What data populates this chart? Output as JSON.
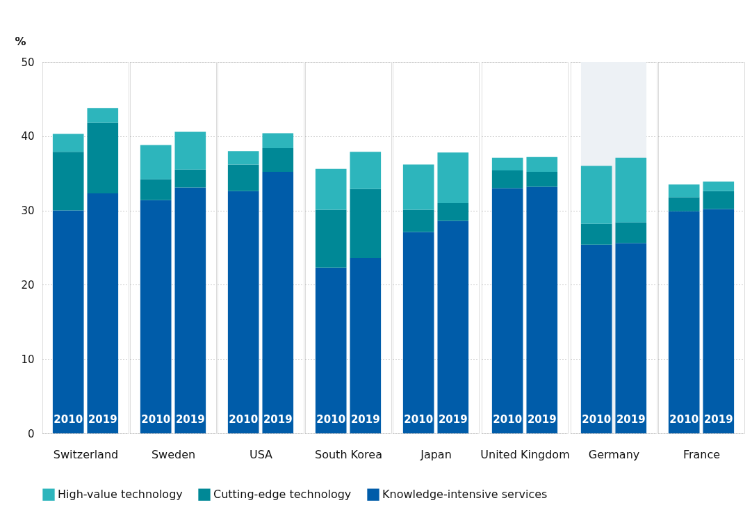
{
  "chart_data": [
    {
      "type": "bar",
      "stacked": true,
      "ylabel": "%",
      "xlabel": "Switzerland",
      "categories": [
        "2010",
        "2019"
      ],
      "ylim": [
        0,
        50
      ],
      "yticks": [
        0,
        10,
        20,
        30,
        40,
        50
      ],
      "grid": "y",
      "legend": "bottom",
      "series": [
        {
          "name": "Knowledge-intensive services",
          "color": "#005ca9",
          "values": [
            30.0,
            32.3
          ]
        },
        {
          "name": "Cutting-edge technology",
          "color": "#008896",
          "values": [
            7.9,
            9.5
          ]
        },
        {
          "name": "High-value technology",
          "color": "#2db5bc",
          "values": [
            2.4,
            2.0
          ]
        }
      ]
    },
    {
      "type": "bar",
      "stacked": true,
      "xlabel": "Sweden",
      "categories": [
        "2010",
        "2019"
      ],
      "ylim": [
        0,
        50
      ],
      "grid": "y",
      "tick_labels": "x",
      "series": [
        {
          "color": "#005ca9",
          "values": [
            31.4,
            33.1
          ]
        },
        {
          "color": "#008896",
          "values": [
            2.8,
            2.4
          ]
        },
        {
          "color": "#2db5bc",
          "values": [
            4.6,
            5.1
          ]
        }
      ]
    },
    {
      "type": "bar",
      "stacked": true,
      "xlabel": "USA",
      "categories": [
        "2010",
        "2019"
      ],
      "ylim": [
        0,
        50
      ],
      "grid": "y",
      "tick_labels": "x",
      "series": [
        {
          "color": "#005ca9",
          "values": [
            32.6,
            35.2
          ]
        },
        {
          "color": "#008896",
          "values": [
            3.6,
            3.2
          ]
        },
        {
          "color": "#2db5bc",
          "values": [
            1.8,
            2.0
          ]
        }
      ]
    },
    {
      "type": "bar",
      "stacked": true,
      "xlabel": "South Korea",
      "categories": [
        "2010",
        "2019"
      ],
      "ylim": [
        0,
        50
      ],
      "grid": "y",
      "tick_labels": "x",
      "series": [
        {
          "color": "#005ca9",
          "values": [
            22.3,
            23.6
          ]
        },
        {
          "color": "#008896",
          "values": [
            7.8,
            9.3
          ]
        },
        {
          "color": "#2db5bc",
          "values": [
            5.5,
            5.0
          ]
        }
      ]
    },
    {
      "type": "bar",
      "stacked": true,
      "xlabel": "Japan",
      "categories": [
        "2010",
        "2019"
      ],
      "ylim": [
        0,
        50
      ],
      "grid": "y",
      "tick_labels": "x",
      "series": [
        {
          "color": "#005ca9",
          "values": [
            27.1,
            28.6
          ]
        },
        {
          "color": "#008896",
          "values": [
            3.0,
            2.4
          ]
        },
        {
          "color": "#2db5bc",
          "values": [
            6.1,
            6.8
          ]
        }
      ]
    },
    {
      "type": "bar",
      "stacked": true,
      "xlabel": "United Kingdom",
      "categories": [
        "2010",
        "2019"
      ],
      "ylim": [
        0,
        50
      ],
      "grid": "y",
      "tick_labels": "x",
      "series": [
        {
          "color": "#005ca9",
          "values": [
            33.0,
            33.2
          ]
        },
        {
          "color": "#008896",
          "values": [
            2.4,
            2.0
          ]
        },
        {
          "color": "#2db5bc",
          "values": [
            1.7,
            2.0
          ]
        }
      ]
    },
    {
      "type": "bar",
      "stacked": true,
      "xlabel": "Germany",
      "categories": [
        "2010",
        "2019"
      ],
      "ylim": [
        0,
        50
      ],
      "grid": "y",
      "tick_labels": "x",
      "bands": [
        {
          "axis": "x",
          "from": "2010",
          "to": "2019",
          "color": "#edf1f5"
        }
      ],
      "series": [
        {
          "color": "#005ca9",
          "values": [
            25.4,
            25.6
          ]
        },
        {
          "color": "#008896",
          "values": [
            2.8,
            2.8
          ]
        },
        {
          "color": "#2db5bc",
          "values": [
            7.8,
            8.7
          ]
        }
      ]
    },
    {
      "type": "bar",
      "stacked": true,
      "xlabel": "France",
      "categories": [
        "2010",
        "2019"
      ],
      "ylim": [
        0,
        50
      ],
      "grid": "y",
      "tick_labels": "x",
      "series": [
        {
          "color": "#005ca9",
          "values": [
            29.9,
            30.2
          ]
        },
        {
          "color": "#008896",
          "values": [
            1.9,
            2.4
          ]
        },
        {
          "color": "#2db5bc",
          "values": [
            1.7,
            1.3
          ]
        }
      ]
    }
  ]
}
